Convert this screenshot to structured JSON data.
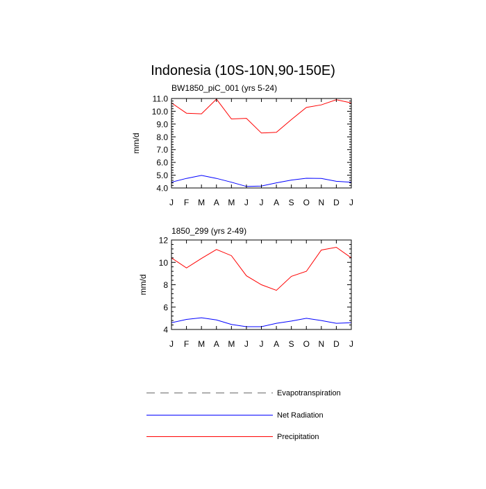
{
  "title": "Indonesia (10S-10N,90-150E)",
  "legend": {
    "placement": "bottom",
    "entries": [
      {
        "label": "Evapotranspiration",
        "color": "#808080",
        "style": "dashed"
      },
      {
        "label": "Net Radiation",
        "color": "#0000ff",
        "style": "solid"
      },
      {
        "label": "Precipitation",
        "color": "#ff0000",
        "style": "solid"
      }
    ]
  },
  "chart_data": [
    {
      "type": "line",
      "title": "BW1850_piC_001 (yrs 5-24)",
      "ylabel": "mm/d",
      "xlabel": "",
      "categories": [
        "J",
        "F",
        "M",
        "A",
        "M",
        "J",
        "J",
        "A",
        "S",
        "O",
        "N",
        "D",
        "J"
      ],
      "ylim": [
        4.0,
        11.0
      ],
      "yticks": [
        4.0,
        5.0,
        6.0,
        7.0,
        8.0,
        9.0,
        10.0,
        11.0
      ],
      "ytick_labels": [
        "4.0",
        "5.0",
        "6.0",
        "7.0",
        "8.0",
        "9.0",
        "10.0",
        "11.0"
      ],
      "grid": false,
      "series": [
        {
          "name": "Precipitation",
          "color": "#ff0000",
          "values": [
            10.65,
            9.85,
            9.8,
            10.95,
            9.4,
            9.45,
            8.3,
            8.35,
            9.35,
            10.3,
            10.5,
            10.9,
            10.65
          ]
        },
        {
          "name": "Net Radiation",
          "color": "#0000ff",
          "values": [
            4.45,
            4.75,
            4.98,
            4.75,
            4.45,
            4.12,
            4.15,
            4.4,
            4.62,
            4.76,
            4.75,
            4.52,
            4.45
          ]
        }
      ]
    },
    {
      "type": "line",
      "title": "1850_299 (yrs 2-49)",
      "ylabel": "mm/d",
      "xlabel": "",
      "categories": [
        "J",
        "F",
        "M",
        "A",
        "M",
        "J",
        "J",
        "A",
        "S",
        "O",
        "N",
        "D",
        "J"
      ],
      "ylim": [
        4,
        12
      ],
      "yticks": [
        4,
        6,
        8,
        10,
        12
      ],
      "ytick_labels": [
        "4",
        "6",
        "8",
        "10",
        "12"
      ],
      "grid": false,
      "series": [
        {
          "name": "Precipitation",
          "color": "#ff0000",
          "values": [
            10.4,
            9.5,
            10.35,
            11.15,
            10.6,
            8.8,
            8.0,
            7.5,
            8.75,
            9.2,
            11.1,
            11.35,
            10.4
          ]
        },
        {
          "name": "Net Radiation",
          "color": "#0000ff",
          "values": [
            4.6,
            4.9,
            5.05,
            4.85,
            4.45,
            4.25,
            4.25,
            4.55,
            4.75,
            5.0,
            4.8,
            4.55,
            4.6
          ]
        }
      ]
    }
  ]
}
